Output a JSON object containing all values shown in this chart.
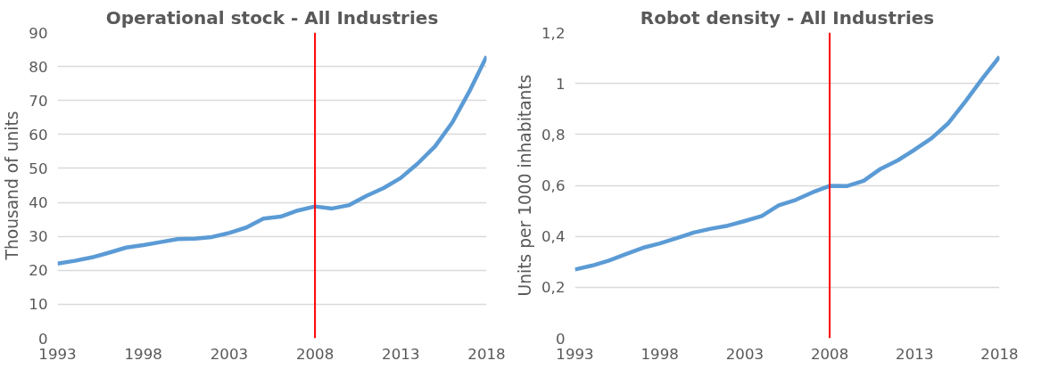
{
  "chart_data": [
    {
      "type": "line",
      "title": "Operational stock - All Industries",
      "ylabel": "Thousand of units",
      "x": [
        1993,
        1994,
        1995,
        1996,
        1997,
        1998,
        1999,
        2000,
        2001,
        2002,
        2003,
        2004,
        2005,
        2006,
        2007,
        2008,
        2009,
        2010,
        2011,
        2012,
        2013,
        2014,
        2015,
        2016,
        2017,
        2018
      ],
      "series": [
        {
          "color": "#5b9bd5",
          "values": [
            22,
            22.8,
            23.8,
            25.2,
            26.7,
            27.4,
            28.3,
            29.2,
            29.3,
            29.8,
            31,
            32.6,
            35.2,
            35.8,
            37.6,
            38.8,
            38.2,
            39.2,
            41.9,
            44.2,
            47.2,
            51.5,
            56.5,
            63.5,
            72.7,
            83
          ]
        }
      ],
      "xlim": [
        1993,
        2018
      ],
      "xticks": [
        1993,
        1998,
        2003,
        2008,
        2013,
        2018
      ],
      "ylim": [
        0,
        90
      ],
      "yticks": [
        0,
        10,
        20,
        30,
        40,
        50,
        60,
        70,
        80,
        90
      ],
      "grid": "y",
      "ref_lines": [
        {
          "axis": "x",
          "value": 2008,
          "color": "#ff0000"
        }
      ]
    },
    {
      "type": "line",
      "title": "Robot density - All Industries",
      "ylabel": "Units per 1000 inhabitants",
      "x": [
        1993,
        1994,
        1995,
        1996,
        1997,
        1998,
        1999,
        2000,
        2001,
        2002,
        2003,
        2004,
        2005,
        2006,
        2007,
        2008,
        2009,
        2010,
        2011,
        2012,
        2013,
        2014,
        2015,
        2016,
        2017,
        2018
      ],
      "series": [
        {
          "color": "#5b9bd5",
          "values": [
            0.27,
            0.285,
            0.305,
            0.33,
            0.355,
            0.372,
            0.393,
            0.415,
            0.43,
            0.442,
            0.46,
            0.48,
            0.522,
            0.543,
            0.573,
            0.598,
            0.597,
            0.618,
            0.665,
            0.698,
            0.74,
            0.785,
            0.845,
            0.93,
            1.02,
            1.105
          ]
        }
      ],
      "xlim": [
        1993,
        2018
      ],
      "xticks": [
        1993,
        1998,
        2003,
        2008,
        2013,
        2018
      ],
      "ylim": [
        0,
        1.2
      ],
      "yticks": [
        0,
        {
          "value": 0.2,
          "label": "0,2"
        },
        {
          "value": 0.4,
          "label": "0,4"
        },
        {
          "value": 0.6,
          "label": "0,6"
        },
        {
          "value": 0.8,
          "label": "0,8"
        },
        1,
        {
          "value": 1.2,
          "label": "1,2"
        }
      ],
      "grid": "y",
      "ref_lines": [
        {
          "axis": "x",
          "value": 2008,
          "color": "#ff0000"
        }
      ]
    }
  ]
}
